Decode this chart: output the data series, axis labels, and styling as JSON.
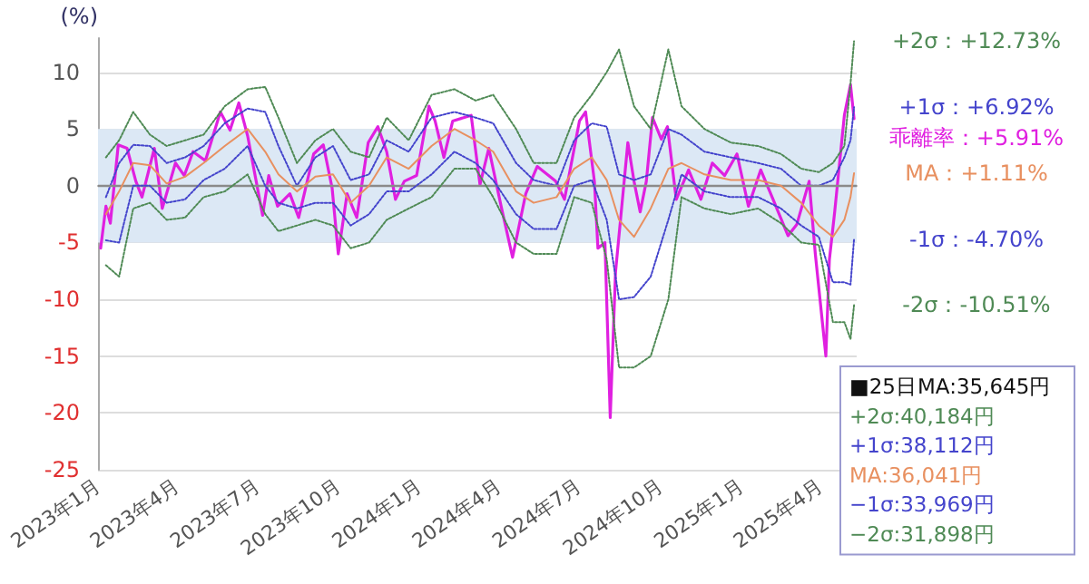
{
  "chart_data": {
    "type": "line",
    "ylabel": "(%)",
    "xlim": [
      "2023-01-01",
      "2025-05-12"
    ],
    "ylim": [
      -25,
      13
    ],
    "xticks": [
      {
        "value": "2023-01-01",
        "label": "2023年1月"
      },
      {
        "value": "2023-04-01",
        "label": "2023年4月"
      },
      {
        "value": "2023-07-01",
        "label": "2023年7月"
      },
      {
        "value": "2023-10-01",
        "label": "2023年10月"
      },
      {
        "value": "2024-01-01",
        "label": "2024年1月"
      },
      {
        "value": "2024-04-01",
        "label": "2024年4月"
      },
      {
        "value": "2024-07-01",
        "label": "2024年7月"
      },
      {
        "value": "2024-10-01",
        "label": "2024年10月"
      },
      {
        "value": "2025-01-01",
        "label": "2025年1月"
      },
      {
        "value": "2025-04-01",
        "label": "2025年4月"
      }
    ],
    "yticks": [
      -25,
      -20,
      -15,
      -10,
      -5,
      0,
      5,
      10
    ],
    "grid": "y",
    "marker": "none",
    "bands": [
      {
        "axis": "y",
        "from": -5,
        "to": 5,
        "color": "#dce8f5"
      }
    ],
    "ref_lines": [
      {
        "axis": "y",
        "value": 0,
        "color": "#8a8a8a"
      }
    ],
    "x": [
      "2023-01-10",
      "2023-01-25",
      "2023-02-10",
      "2023-03-01",
      "2023-03-20",
      "2023-04-10",
      "2023-05-01",
      "2023-05-25",
      "2023-06-20",
      "2023-07-10",
      "2023-07-25",
      "2023-08-15",
      "2023-09-05",
      "2023-09-25",
      "2023-10-15",
      "2023-11-05",
      "2023-11-25",
      "2023-12-20",
      "2024-01-15",
      "2024-02-10",
      "2024-03-05",
      "2024-03-25",
      "2024-04-20",
      "2024-05-10",
      "2024-06-05",
      "2024-06-25",
      "2024-07-15",
      "2024-08-01",
      "2024-08-15",
      "2024-09-01",
      "2024-09-20",
      "2024-10-10",
      "2024-10-25",
      "2024-11-20",
      "2024-12-20",
      "2025-01-20",
      "2025-02-15",
      "2025-03-10",
      "2025-03-30",
      "2025-04-15",
      "2025-04-28",
      "2025-05-05",
      "2025-05-09"
    ],
    "series": [
      {
        "color": "#4f8a55",
        "line_style": "dotted",
        "values": [
          2.5,
          4,
          6.5,
          4.5,
          3.5,
          4,
          4.5,
          7,
          8.5,
          8.7,
          6,
          2,
          4,
          5,
          3,
          2.5,
          6,
          4,
          8,
          8.5,
          7.5,
          8,
          5,
          2,
          2,
          6,
          8,
          10,
          12,
          7,
          5,
          12,
          7,
          5,
          3.8,
          3.5,
          2.8,
          1.5,
          1.2,
          2,
          3.5,
          9,
          12.73
        ]
      },
      {
        "color": "#4444cc",
        "line_style": "dotted",
        "values": [
          -1,
          2,
          3.6,
          3.5,
          2,
          2.5,
          3.5,
          5.5,
          6.8,
          6.5,
          3.5,
          0,
          2.5,
          3.5,
          0.5,
          1,
          4,
          3,
          6,
          6.5,
          6,
          5.5,
          2,
          0.5,
          0,
          4,
          5.5,
          5.2,
          1,
          0.5,
          1,
          5,
          4.5,
          3,
          2.5,
          2,
          1.5,
          0,
          0,
          0.5,
          2.5,
          4,
          6.92
        ]
      },
      {
        "color": "#e89060",
        "line_style": "solid",
        "values": [
          -2.5,
          -0.5,
          2,
          1.8,
          0.2,
          0.8,
          2,
          3.5,
          5,
          3,
          1,
          -0.5,
          0.8,
          1,
          -1.5,
          0,
          2.5,
          1.5,
          3.5,
          5,
          4,
          3,
          -0.5,
          -1.5,
          -1,
          1.5,
          2.5,
          0.5,
          -3,
          -4.5,
          -2,
          1.5,
          2,
          1,
          0.5,
          0.5,
          0,
          -1.5,
          -3.5,
          -4.5,
          -3,
          -1,
          1.11
        ]
      },
      {
        "color": "#4444cc",
        "line_style": "dotted",
        "values": [
          -4.8,
          -5,
          0,
          0,
          -1.5,
          -1.2,
          0.5,
          1.5,
          3.5,
          0,
          -1.5,
          -2,
          -1.5,
          -1.5,
          -3.5,
          -2.5,
          -0.5,
          -0.5,
          1,
          3,
          2,
          0.5,
          -2.5,
          -3.8,
          -3.8,
          0,
          0.5,
          -3,
          -10,
          -9.8,
          -8,
          -3,
          1,
          -0.5,
          -1,
          -1,
          -2,
          -3.5,
          -4.5,
          -8.5,
          -8.5,
          -8.7,
          -4.7
        ]
      },
      {
        "color": "#4f8a55",
        "line_style": "dotted",
        "values": [
          -7,
          -8,
          -2,
          -1.5,
          -3,
          -2.8,
          -1,
          -0.5,
          1,
          -2.5,
          -4,
          -3.5,
          -3,
          -3.5,
          -5.5,
          -5,
          -3,
          -2,
          -1,
          1.5,
          1.5,
          -1,
          -5,
          -6,
          -6,
          -1,
          -1.5,
          -6.5,
          -16,
          -16,
          -15,
          -10,
          -1,
          -2,
          -2.5,
          -2,
          -3.3,
          -5,
          -5.2,
          -12,
          -12,
          -13.5,
          -10.51
        ]
      },
      {
        "color": "#e020e0",
        "line_style": "solid",
        "x": [
          "2023-01-04",
          "2023-01-10",
          "2023-01-15",
          "2023-01-24",
          "2023-02-03",
          "2023-02-13",
          "2023-02-20",
          "2023-03-06",
          "2023-03-15",
          "2023-03-30",
          "2023-04-09",
          "2023-04-19",
          "2023-05-03",
          "2023-05-20",
          "2023-05-31",
          "2023-06-10",
          "2023-06-20",
          "2023-07-07",
          "2023-07-14",
          "2023-07-24",
          "2023-08-07",
          "2023-08-17",
          "2023-09-03",
          "2023-09-14",
          "2023-09-24",
          "2023-10-01",
          "2023-10-11",
          "2023-10-22",
          "2023-11-04",
          "2023-11-15",
          "2023-11-25",
          "2023-12-05",
          "2023-12-15",
          "2023-12-29",
          "2024-01-12",
          "2024-01-19",
          "2024-01-29",
          "2024-02-08",
          "2024-02-29",
          "2024-03-10",
          "2024-03-20",
          "2024-04-03",
          "2024-04-16",
          "2024-05-01",
          "2024-05-14",
          "2024-06-04",
          "2024-06-14",
          "2024-07-01",
          "2024-07-08",
          "2024-07-18",
          "2024-07-22",
          "2024-07-30",
          "2024-08-05",
          "2024-08-11",
          "2024-08-25",
          "2024-09-01",
          "2024-09-08",
          "2024-09-15",
          "2024-09-22",
          "2024-10-02",
          "2024-10-09",
          "2024-10-19",
          "2024-11-02",
          "2024-11-16",
          "2024-11-29",
          "2024-12-13",
          "2024-12-27",
          "2025-01-09",
          "2025-01-23",
          "2025-02-06",
          "2025-02-23",
          "2025-03-05",
          "2025-03-19",
          "2025-03-26",
          "2025-04-07",
          "2025-04-11",
          "2025-04-17",
          "2025-04-28",
          "2025-05-05",
          "2025-05-09"
        ],
        "values": [
          -5.5,
          -1.8,
          -3.3,
          3.6,
          3.3,
          0.4,
          -1,
          3.3,
          -2,
          2,
          0.9,
          3,
          2.2,
          6.5,
          4.9,
          7.3,
          4.4,
          -2.6,
          0.9,
          -1.8,
          -0.7,
          -2.8,
          2.8,
          3.6,
          -0.2,
          -6,
          -0.7,
          -2.8,
          3.8,
          5.2,
          3,
          -1.2,
          0.4,
          0.9,
          7,
          5.7,
          2.5,
          5.7,
          6.2,
          0.1,
          3.3,
          -1.8,
          -6.3,
          -0.7,
          1.7,
          0.4,
          -1.2,
          5.7,
          6.5,
          0.4,
          -5.5,
          -5,
          -20.4,
          -7.6,
          3.8,
          0.4,
          -2.3,
          0.4,
          6,
          4.1,
          5.2,
          -1.2,
          1.4,
          -1.2,
          2,
          0.9,
          2.8,
          -1.8,
          1.4,
          -1.2,
          -4.4,
          -3.4,
          0.4,
          -6,
          -15,
          -6.5,
          -2.3,
          6.2,
          8.9,
          5.91
        ]
      }
    ],
    "annotations": [
      {
        "text": "+2σ：+12.73%",
        "x": "2025-05-09",
        "y": 12.73
      },
      {
        "text": "+1σ：+6.92%",
        "x": "2025-05-09",
        "y": 6.92
      },
      {
        "text": "乖離率：+5.91%",
        "x": "2025-05-09",
        "y": 5.91
      },
      {
        "text": "MA：+1.11%",
        "x": "2025-05-09",
        "y": 1.11
      },
      {
        "text": "-1σ：-4.70%",
        "x": "2025-05-09",
        "y": -4.7
      },
      {
        "text": "-2σ：-10.51%",
        "x": "2025-05-09",
        "y": -10.51
      },
      "■25日MA:35,645円",
      "+2σ:40,184円",
      "+1σ:38,112円",
      "MA:36,041円",
      "−1σ:33,969円",
      "−2σ:31,898円"
    ]
  }
}
